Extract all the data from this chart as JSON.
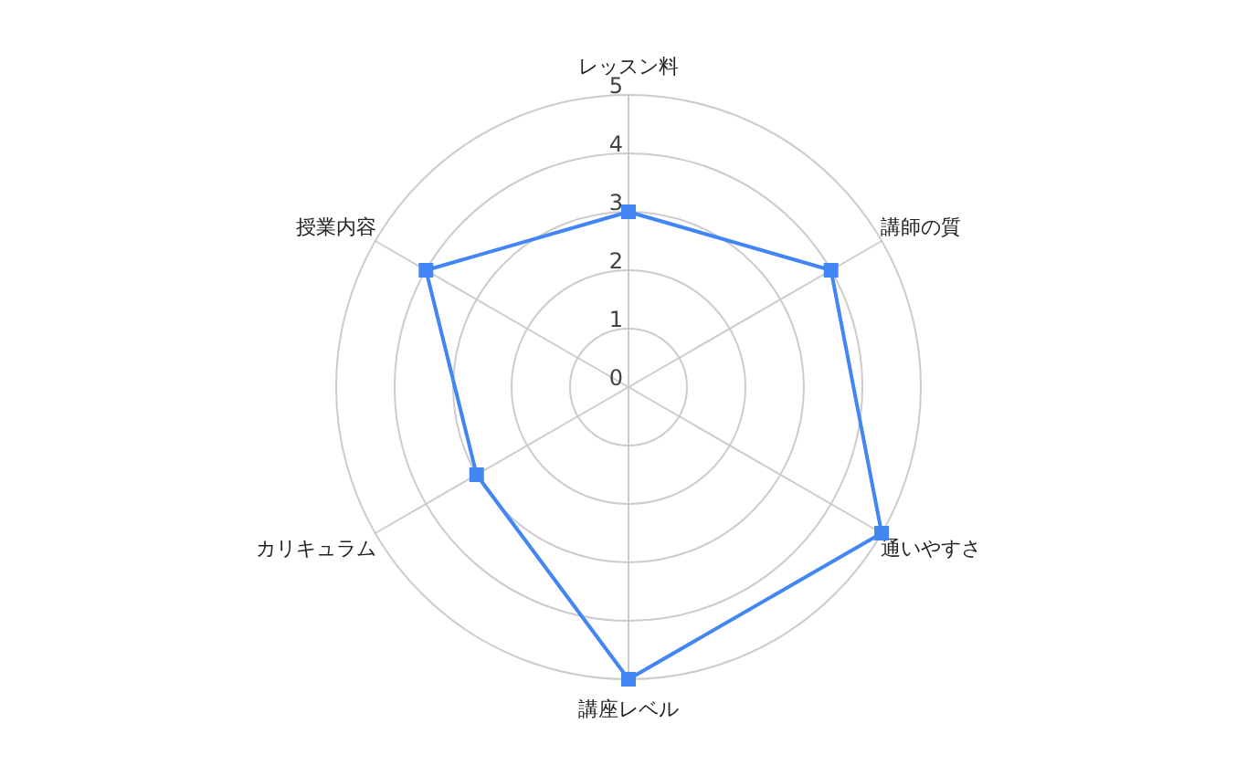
{
  "chart_data": {
    "type": "radar",
    "categories": [
      "レッスン料",
      "講師の質",
      "通いやすさ",
      "講座レベル",
      "カリキュラム",
      "授業内容"
    ],
    "series": [
      {
        "color": "#4285f4",
        "values": [
          3,
          4,
          5,
          5,
          3,
          4
        ]
      }
    ],
    "ylim": [
      0,
      5
    ],
    "yticks": [
      0,
      1,
      2,
      3,
      4,
      5
    ],
    "grid": true,
    "marker": "square"
  }
}
